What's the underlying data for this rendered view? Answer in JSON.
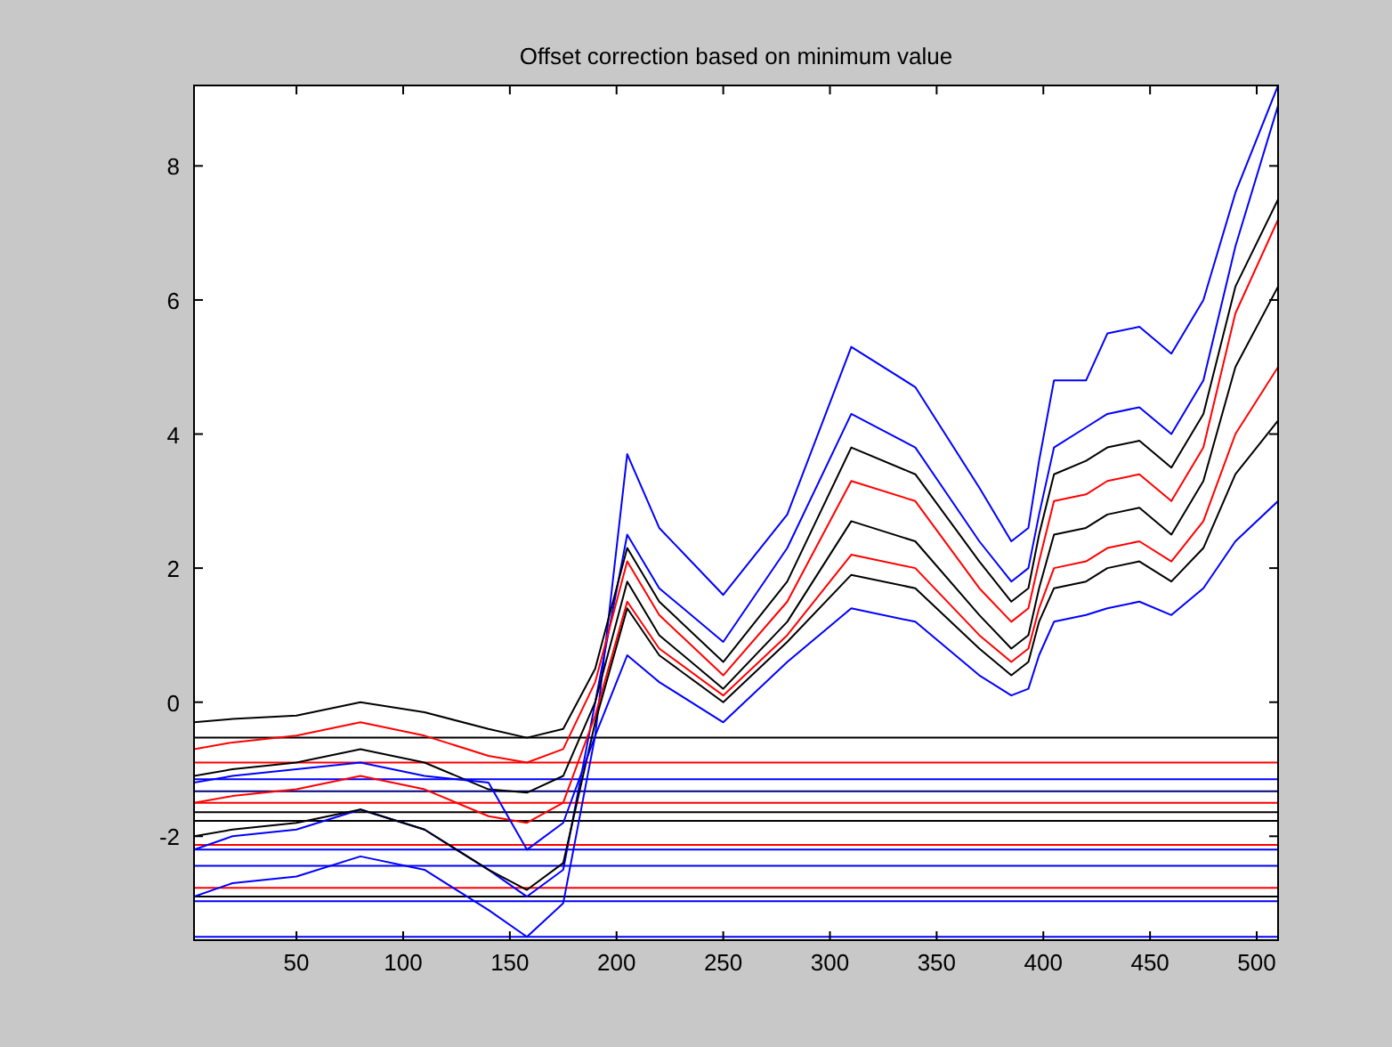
{
  "chart_data": {
    "type": "line",
    "title": "Offset correction based on minimum value",
    "x": [
      2,
      20,
      50,
      80,
      110,
      140,
      158,
      175,
      190,
      205,
      220,
      250,
      280,
      310,
      340,
      370,
      385,
      393,
      398,
      405,
      420,
      430,
      445,
      460,
      475,
      490,
      510
    ],
    "xlim": [
      2,
      510
    ],
    "xticks": [
      50,
      100,
      150,
      200,
      250,
      300,
      350,
      400,
      450,
      500
    ],
    "ylim": [
      -3.55,
      9.2
    ],
    "yticks": [
      -2,
      0,
      2,
      4,
      6,
      8
    ],
    "grid": false,
    "marker": "none",
    "line_style": "solid",
    "series": [
      {
        "color": "#0000ff",
        "values": [
          -2.9,
          -2.7,
          -2.6,
          -2.3,
          -2.5,
          -3.1,
          -3.5,
          -3.0,
          -0.5,
          3.7,
          2.6,
          1.6,
          2.8,
          5.3,
          4.7,
          3.2,
          2.4,
          2.6,
          3.6,
          4.8,
          4.8,
          5.5,
          5.6,
          5.2,
          6.0,
          7.6,
          9.2
        ]
      },
      {
        "color": "#0000ff",
        "values": [
          -2.2,
          -2.0,
          -1.9,
          -1.6,
          -1.9,
          -2.5,
          -2.9,
          -2.5,
          0.0,
          2.5,
          1.7,
          0.9,
          2.3,
          4.3,
          3.8,
          2.4,
          1.8,
          2.0,
          2.8,
          3.8,
          4.1,
          4.3,
          4.4,
          4.0,
          4.8,
          6.8,
          8.9
        ]
      },
      {
        "color": "#000000",
        "values": [
          -0.3,
          -0.25,
          -0.2,
          0.0,
          -0.15,
          -0.4,
          -0.53,
          -0.4,
          0.5,
          2.3,
          1.5,
          0.6,
          1.8,
          3.8,
          3.4,
          2.1,
          1.5,
          1.7,
          2.5,
          3.4,
          3.6,
          3.8,
          3.9,
          3.5,
          4.3,
          6.2,
          7.5
        ]
      },
      {
        "color": "#ff0000",
        "values": [
          -0.7,
          -0.6,
          -0.5,
          -0.3,
          -0.5,
          -0.8,
          -0.9,
          -0.7,
          0.3,
          2.1,
          1.3,
          0.4,
          1.5,
          3.3,
          3.0,
          1.7,
          1.2,
          1.4,
          2.1,
          3.0,
          3.1,
          3.3,
          3.4,
          3.0,
          3.8,
          5.8,
          7.2
        ]
      },
      {
        "color": "#000000",
        "values": [
          -1.1,
          -1.0,
          -0.9,
          -0.7,
          -0.9,
          -1.3,
          -1.35,
          -1.1,
          0.0,
          1.8,
          1.0,
          0.2,
          1.2,
          2.7,
          2.4,
          1.3,
          0.8,
          1.0,
          1.7,
          2.5,
          2.6,
          2.8,
          2.9,
          2.5,
          3.3,
          5.0,
          6.2
        ]
      },
      {
        "color": "#ff0000",
        "values": [
          -1.5,
          -1.4,
          -1.3,
          -1.1,
          -1.3,
          -1.7,
          -1.8,
          -1.5,
          -0.2,
          1.5,
          0.8,
          0.1,
          1.0,
          2.2,
          2.0,
          1.0,
          0.6,
          0.8,
          1.4,
          2.0,
          2.1,
          2.3,
          2.4,
          2.1,
          2.7,
          4.0,
          5.0
        ]
      },
      {
        "color": "#000000",
        "values": [
          -2.0,
          -1.9,
          -1.8,
          -1.6,
          -1.9,
          -2.5,
          -2.8,
          -2.4,
          -0.3,
          1.4,
          0.7,
          0.0,
          0.9,
          1.9,
          1.7,
          0.8,
          0.4,
          0.6,
          1.2,
          1.7,
          1.8,
          2.0,
          2.1,
          1.8,
          2.3,
          3.4,
          4.2
        ]
      },
      {
        "color": "#0000ff",
        "values": [
          -1.2,
          -1.1,
          -1.0,
          -0.9,
          -1.1,
          -1.2,
          -2.2,
          -1.8,
          -0.5,
          0.7,
          0.3,
          -0.3,
          0.6,
          1.4,
          1.2,
          0.4,
          0.1,
          0.2,
          0.7,
          1.2,
          1.3,
          1.4,
          1.5,
          1.3,
          1.7,
          2.4,
          3.0
        ]
      }
    ],
    "ref_lines": [
      {
        "axis": "y",
        "value": -0.53,
        "color": "#000000"
      },
      {
        "axis": "y",
        "value": -0.9,
        "color": "#ff0000"
      },
      {
        "axis": "y",
        "value": -1.15,
        "color": "#0000ff"
      },
      {
        "axis": "y",
        "value": -1.33,
        "color": "#000080"
      },
      {
        "axis": "y",
        "value": -1.5,
        "color": "#ff0000"
      },
      {
        "axis": "y",
        "value": -1.64,
        "color": "#000000"
      },
      {
        "axis": "y",
        "value": -1.77,
        "color": "#000000"
      },
      {
        "axis": "y",
        "value": -2.13,
        "color": "#ff0000"
      },
      {
        "axis": "y",
        "value": -2.2,
        "color": "#0000ff"
      },
      {
        "axis": "y",
        "value": -2.44,
        "color": "#0000ff"
      },
      {
        "axis": "y",
        "value": -2.77,
        "color": "#ff0000"
      },
      {
        "axis": "y",
        "value": -2.9,
        "color": "#000000"
      },
      {
        "axis": "y",
        "value": -2.97,
        "color": "#0000ff"
      },
      {
        "axis": "y",
        "value": -3.5,
        "color": "#0000ff"
      }
    ]
  }
}
